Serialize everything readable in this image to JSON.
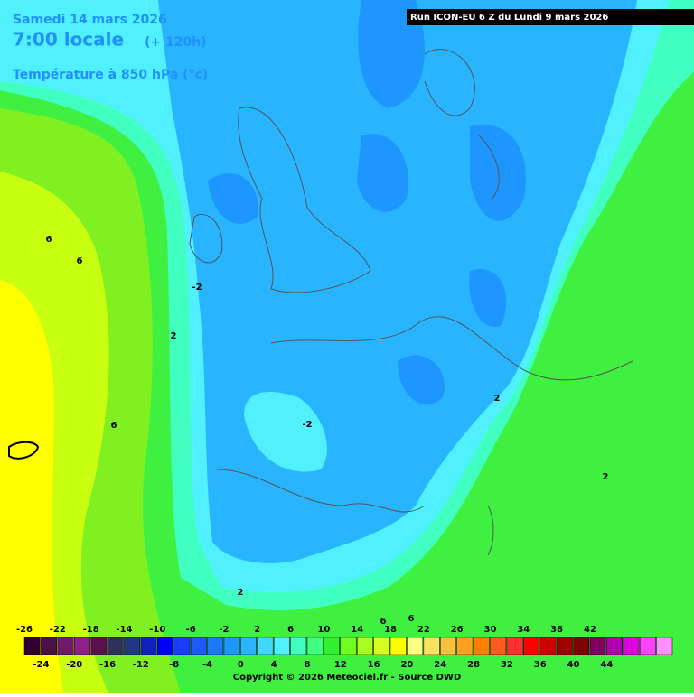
{
  "header": {
    "date": "Samedi 14 mars 2026",
    "time": "7:00 locale",
    "lead": "(+ 120h)",
    "field": "Température à 850 hPa (°c)",
    "run": "Run ICON-EU 6 Z du Lundi 9 mars 2026"
  },
  "contour_labels": [
    "6",
    "6",
    "-2",
    "2",
    "6",
    "-2",
    "2",
    "2",
    "2",
    "6",
    "6"
  ],
  "legend": {
    "ticks": [
      -26,
      -24,
      -22,
      -20,
      -18,
      -16,
      -14,
      -12,
      -10,
      -8,
      -6,
      -4,
      -2,
      0,
      2,
      4,
      6,
      8,
      10,
      12,
      14,
      16,
      18,
      20,
      22,
      24,
      26,
      28,
      30,
      32,
      34,
      36,
      38,
      40,
      42,
      44
    ],
    "colors": [
      "#300030",
      "#4a104a",
      "#701870",
      "#8c208c",
      "#5a1050",
      "#303060",
      "#203880",
      "#1020c0",
      "#0000ff",
      "#1a3cff",
      "#1e5aff",
      "#1e78ff",
      "#1e96ff",
      "#28b4ff",
      "#40d8ff",
      "#50f0ff",
      "#40ffc0",
      "#40ff80",
      "#30f030",
      "#70ff20",
      "#a8ff20",
      "#d8ff20",
      "#ffff00",
      "#ffff80",
      "#ffe060",
      "#ffc040",
      "#ffa020",
      "#ff8000",
      "#ff5a20",
      "#ff3030",
      "#ff0000",
      "#d00000",
      "#a00000",
      "#800000",
      "#800060",
      "#b000b0",
      "#e000e0",
      "#ff40ff",
      "#ff90ff"
    ]
  },
  "copyright": "Copyright © 2026 Meteociel.fr - Source DWD"
}
